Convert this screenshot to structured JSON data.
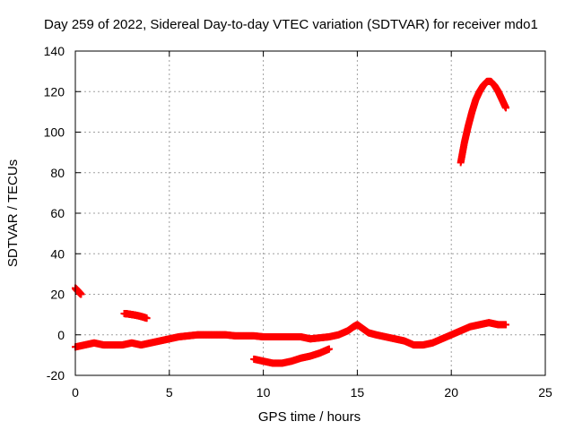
{
  "chart_data": {
    "type": "scatter",
    "title": "Day 259 of 2022, Sidereal Day-to-day VTEC variation (SDTVAR) for receiver mdo1",
    "xlabel": "GPS time / hours",
    "ylabel": "SDTVAR / TECUs",
    "xlim": [
      0,
      25
    ],
    "ylim": [
      -20,
      140
    ],
    "xticks": [
      0,
      5,
      10,
      15,
      20,
      25
    ],
    "yticks": [
      -20,
      0,
      20,
      40,
      60,
      80,
      100,
      120,
      140
    ],
    "grid": true,
    "color": "#ff0000",
    "marker": "+",
    "series": [
      {
        "name": "segment-1",
        "x": [
          0.0,
          0.05,
          0.1,
          0.15,
          0.2,
          0.25,
          0.3
        ],
        "y": [
          23,
          22.5,
          22,
          21.5,
          21,
          20.5,
          20
        ]
      },
      {
        "name": "segment-2",
        "x": [
          0.0,
          0.5,
          1.0,
          1.5,
          2.0,
          2.5,
          3.0,
          3.5,
          4.0,
          4.5,
          5.0,
          5.5,
          6.0,
          6.5,
          7.0,
          7.5,
          8.0,
          8.5,
          9.0,
          9.5,
          10.0,
          10.5,
          11.0,
          11.5,
          12.0,
          12.5,
          13.0,
          13.5,
          14.0,
          14.5,
          14.8,
          15.0,
          15.3,
          15.6,
          16.0,
          16.5,
          17.0,
          17.5,
          18.0,
          18.5,
          19.0,
          19.5,
          20.0,
          20.5,
          21.0,
          21.5,
          22.0,
          22.5,
          22.9
        ],
        "y": [
          -6,
          -5,
          -4,
          -5,
          -5,
          -5,
          -4,
          -5,
          -4,
          -3,
          -2,
          -1,
          -0.5,
          0,
          0,
          0,
          0,
          -0.5,
          -0.5,
          -0.5,
          -1,
          -1,
          -1,
          -1,
          -1,
          -2,
          -1.5,
          -1,
          0,
          2,
          4,
          5,
          3,
          1,
          0,
          -1,
          -2,
          -3,
          -5,
          -5,
          -4,
          -2,
          0,
          2,
          4,
          5,
          6,
          5,
          5
        ]
      },
      {
        "name": "segment-3",
        "x": [
          2.6,
          2.8,
          3.0,
          3.2,
          3.4,
          3.6,
          3.8
        ],
        "y": [
          10.5,
          10.3,
          10.0,
          9.7,
          9.3,
          8.8,
          8.2
        ]
      },
      {
        "name": "segment-4",
        "x": [
          9.5,
          10.0,
          10.5,
          11.0,
          11.5,
          12.0,
          12.5,
          13.0,
          13.5
        ],
        "y": [
          -12,
          -13,
          -14,
          -14,
          -13,
          -11.5,
          -10.5,
          -9,
          -7
        ]
      },
      {
        "name": "segment-5",
        "x": [
          20.5,
          20.7,
          20.9,
          21.1,
          21.3,
          21.5,
          21.7,
          21.9,
          22.1,
          22.3,
          22.5,
          22.7,
          22.9
        ],
        "y": [
          85,
          95,
          103,
          110,
          116,
          120,
          123,
          125,
          125,
          123,
          120,
          116,
          112
        ]
      }
    ]
  }
}
